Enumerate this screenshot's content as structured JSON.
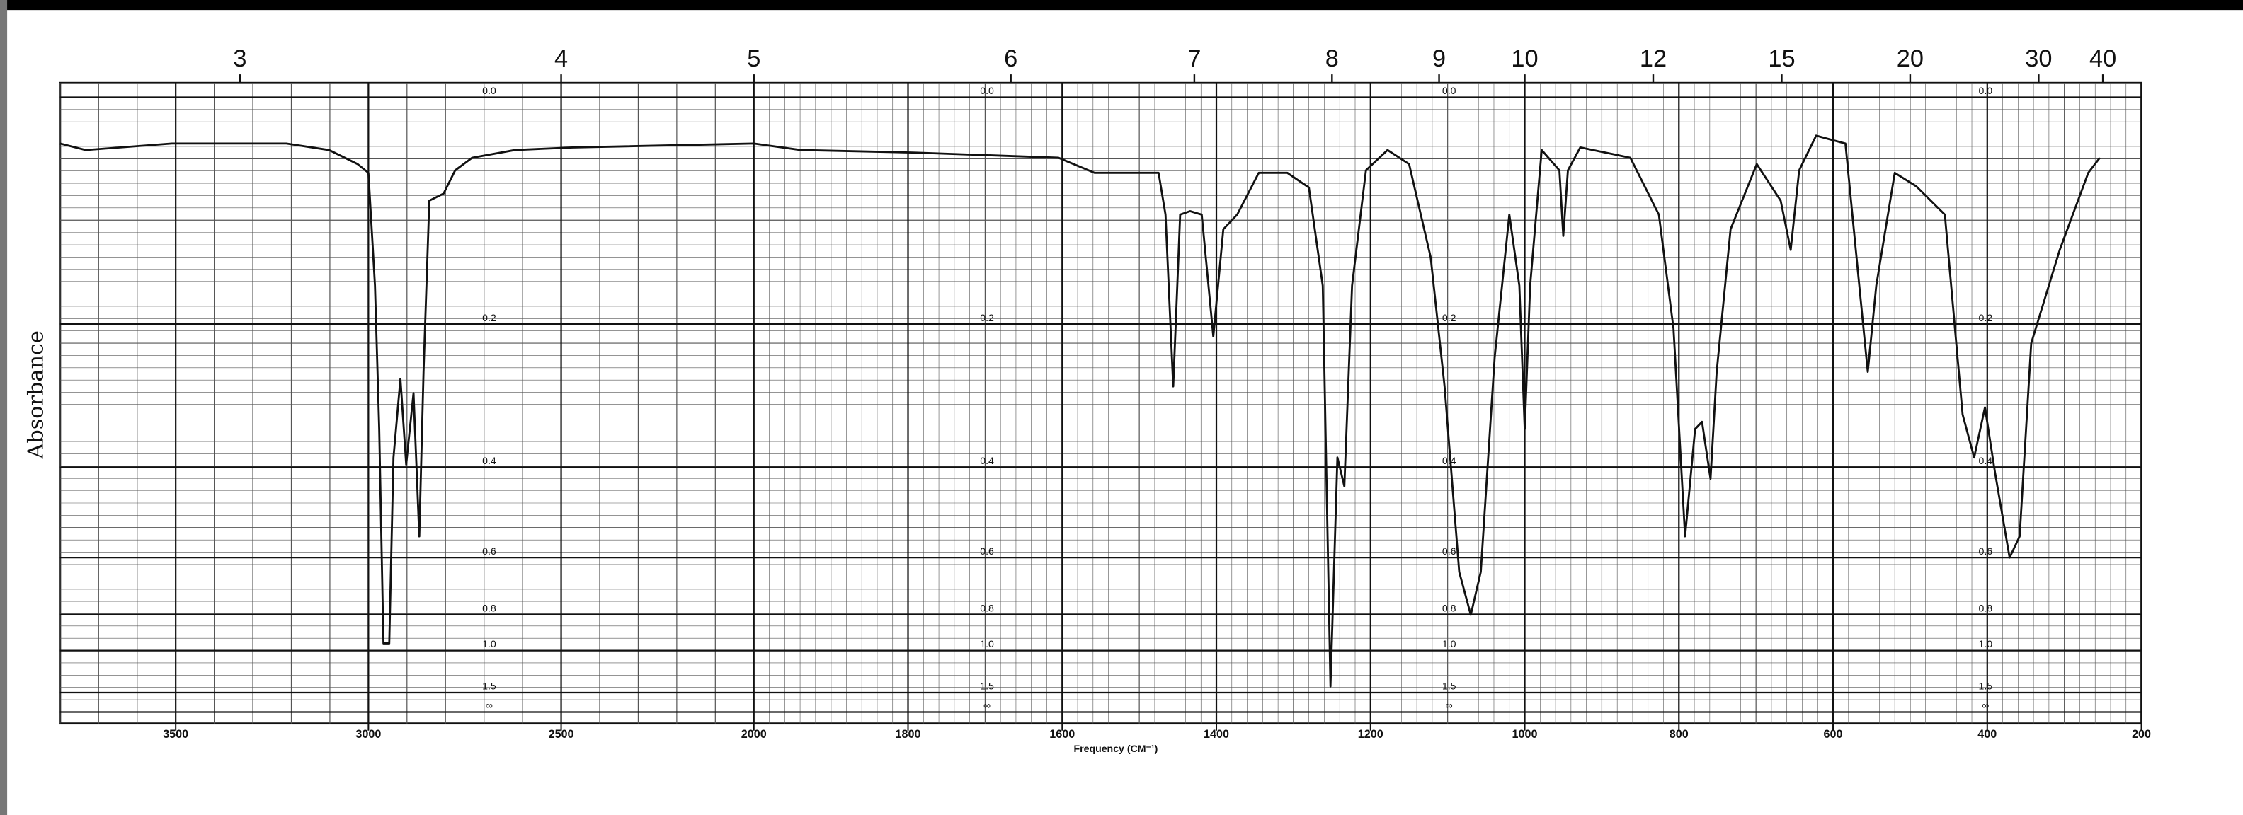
{
  "chart_data": {
    "type": "line",
    "y_label": "Absorbance",
    "x_label": "Frequency (CM⁻¹)",
    "y_scale": "transmittance",
    "xlim": [
      3800,
      200
    ],
    "x_scale_break": 2000,
    "x_scale_ratio": 2,
    "xticks": [
      3500,
      3000,
      2500,
      2000,
      1800,
      1600,
      1400,
      1200,
      1000,
      800,
      600,
      400,
      200
    ],
    "x2ticks": [
      3,
      4,
      5,
      6,
      7,
      8,
      9,
      10,
      12,
      15,
      20,
      30,
      40
    ],
    "ylim": [
      0,
      null
    ],
    "yticks": [
      {
        "value": 0,
        "label": "0.0"
      },
      0.2,
      0.4,
      0.6,
      0.8,
      {
        "value": 1,
        "label": "1.0"
      },
      1.5,
      {
        "value": null,
        "label": "∞"
      }
    ],
    "grid": true,
    "color": "#111111",
    "x": [
      3800,
      3733,
      3510,
      3213,
      3102,
      3028,
      3000,
      2983,
      2972,
      2961,
      2946,
      2935,
      2917,
      2902,
      2883,
      2868,
      2857,
      2842,
      2805,
      2775,
      2731,
      2620,
      2471,
      2000,
      1939,
      1790,
      1605,
      1558,
      1475,
      1466,
      1456,
      1447,
      1434,
      1419,
      1404,
      1391,
      1373,
      1345,
      1308,
      1280,
      1262,
      1252,
      1243,
      1234,
      1224,
      1206,
      1178,
      1150,
      1122,
      1104,
      1085,
      1070,
      1057,
      1039,
      1020,
      1007,
      1000,
      993,
      978,
      955,
      950,
      944,
      928,
      863,
      826,
      807,
      792,
      779,
      770,
      759,
      751,
      733,
      699,
      668,
      655,
      644,
      622,
      584,
      566,
      555,
      544,
      520,
      492,
      455,
      432,
      417,
      403,
      390,
      371,
      358,
      343,
      306,
      269,
      254
    ],
    "values": [
      0.034,
      0.039,
      0.034,
      0.034,
      0.039,
      0.05,
      0.057,
      0.159,
      0.337,
      0.952,
      0.952,
      0.383,
      0.266,
      0.395,
      0.285,
      0.544,
      0.257,
      0.08,
      0.074,
      0.055,
      0.045,
      0.039,
      0.037,
      0.034,
      0.039,
      0.041,
      0.045,
      0.057,
      0.057,
      0.092,
      0.276,
      0.092,
      0.089,
      0.092,
      0.214,
      0.105,
      0.092,
      0.057,
      0.057,
      0.069,
      0.159,
      1.378,
      0.383,
      0.435,
      0.159,
      0.055,
      0.039,
      0.05,
      0.131,
      0.276,
      0.642,
      0.801,
      0.642,
      0.239,
      0.092,
      0.159,
      0.337,
      0.159,
      0.039,
      0.055,
      0.111,
      0.055,
      0.037,
      0.045,
      0.092,
      0.205,
      0.544,
      0.337,
      0.326,
      0.421,
      0.257,
      0.105,
      0.05,
      0.08,
      0.124,
      0.055,
      0.028,
      0.034,
      0.159,
      0.257,
      0.159,
      0.057,
      0.068,
      0.092,
      0.315,
      0.383,
      0.305,
      0.409,
      0.6,
      0.544,
      0.222,
      0.124,
      0.057,
      0.045
    ]
  }
}
